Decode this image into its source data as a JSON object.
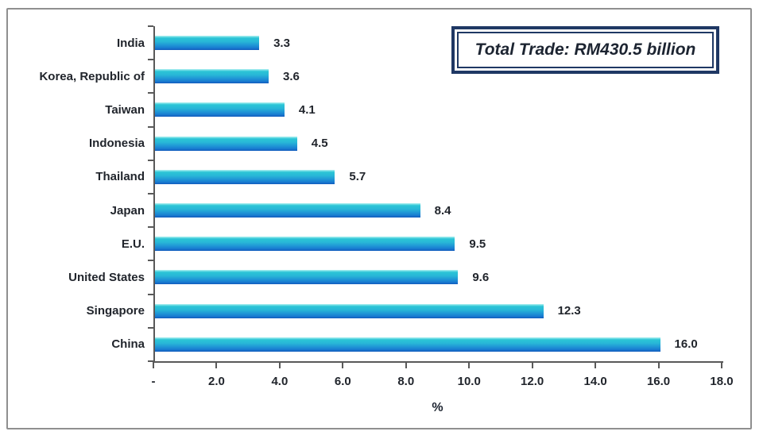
{
  "annotation": {
    "text": "Total Trade: RM430.5 billion"
  },
  "colors": {
    "bar_top": "#2cc5d6",
    "bar_bottom": "#1463c2",
    "axis": "#595959",
    "frame_border": "#8f8f8f",
    "annotation_border": "#1f3864",
    "text": "#21252c"
  },
  "chart_data": {
    "type": "bar",
    "orientation": "horizontal",
    "title": "",
    "annotation": "Total Trade: RM430.5 billion",
    "categories": [
      "India",
      "Korea, Republic of",
      "Taiwan",
      "Indonesia",
      "Thailand",
      "Japan",
      "E.U.",
      "United States",
      "Singapore",
      "China"
    ],
    "values": [
      3.3,
      3.6,
      4.1,
      4.5,
      5.7,
      8.4,
      9.5,
      9.6,
      12.3,
      16.0
    ],
    "value_labels": [
      "3.3",
      "3.6",
      "4.1",
      "4.5",
      "5.7",
      "8.4",
      "9.5",
      "9.6",
      "12.3",
      "16.0"
    ],
    "xlabel": "%",
    "ylabel": "",
    "xlim": [
      0,
      18
    ],
    "x_ticks": [
      0,
      2,
      4,
      6,
      8,
      10,
      12,
      14,
      16,
      18
    ],
    "x_tick_labels": [
      "-",
      "2.0",
      "4.0",
      "6.0",
      "8.0",
      "10.0",
      "12.0",
      "14.0",
      "16.0",
      "18.0"
    ],
    "grid": false,
    "legend": false
  }
}
